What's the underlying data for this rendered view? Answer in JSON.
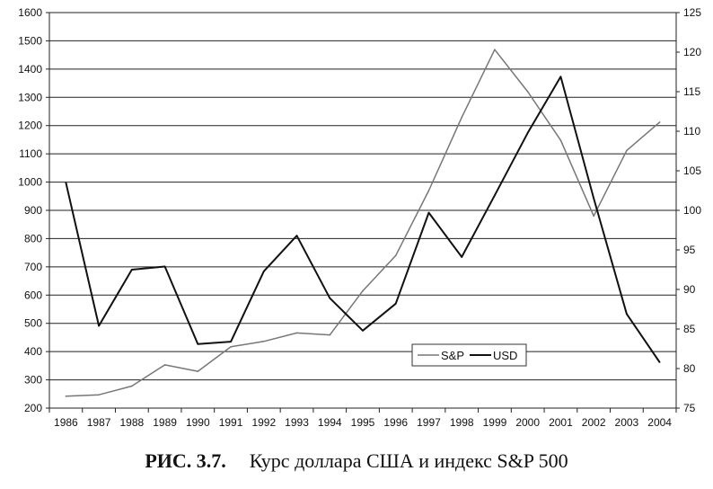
{
  "caption": {
    "label": "РИС. 3.7.",
    "text": "Курс доллара США и индекс S&P 500"
  },
  "chart_data": {
    "type": "line",
    "x": [
      "1986",
      "1987",
      "1988",
      "1989",
      "1990",
      "1991",
      "1992",
      "1993",
      "1994",
      "1995",
      "1996",
      "1997",
      "1998",
      "1999",
      "2000",
      "2001",
      "2002",
      "2003",
      "2004"
    ],
    "series": [
      {
        "name": "S&P",
        "axis": "left",
        "color": "#777777",
        "values": [
          242,
          247,
          278,
          353,
          330,
          417,
          436,
          466,
          459,
          615,
          740,
          970,
          1229,
          1469,
          1320,
          1148,
          880,
          1112,
          1212
        ]
      },
      {
        "name": "USD",
        "axis": "right",
        "color": "#111111",
        "values": [
          103.5,
          85.4,
          92.5,
          92.9,
          83.1,
          83.4,
          92.3,
          96.8,
          88.9,
          84.8,
          88.2,
          99.7,
          94.1,
          101.9,
          109.8,
          116.9,
          101.5,
          86.9,
          80.8
        ]
      }
    ],
    "y_left": {
      "min": 200,
      "max": 1600,
      "step": 100
    },
    "y_right": {
      "min": 75,
      "max": 125,
      "step": 5
    },
    "grid": true,
    "legend_position": "bottom-center"
  }
}
